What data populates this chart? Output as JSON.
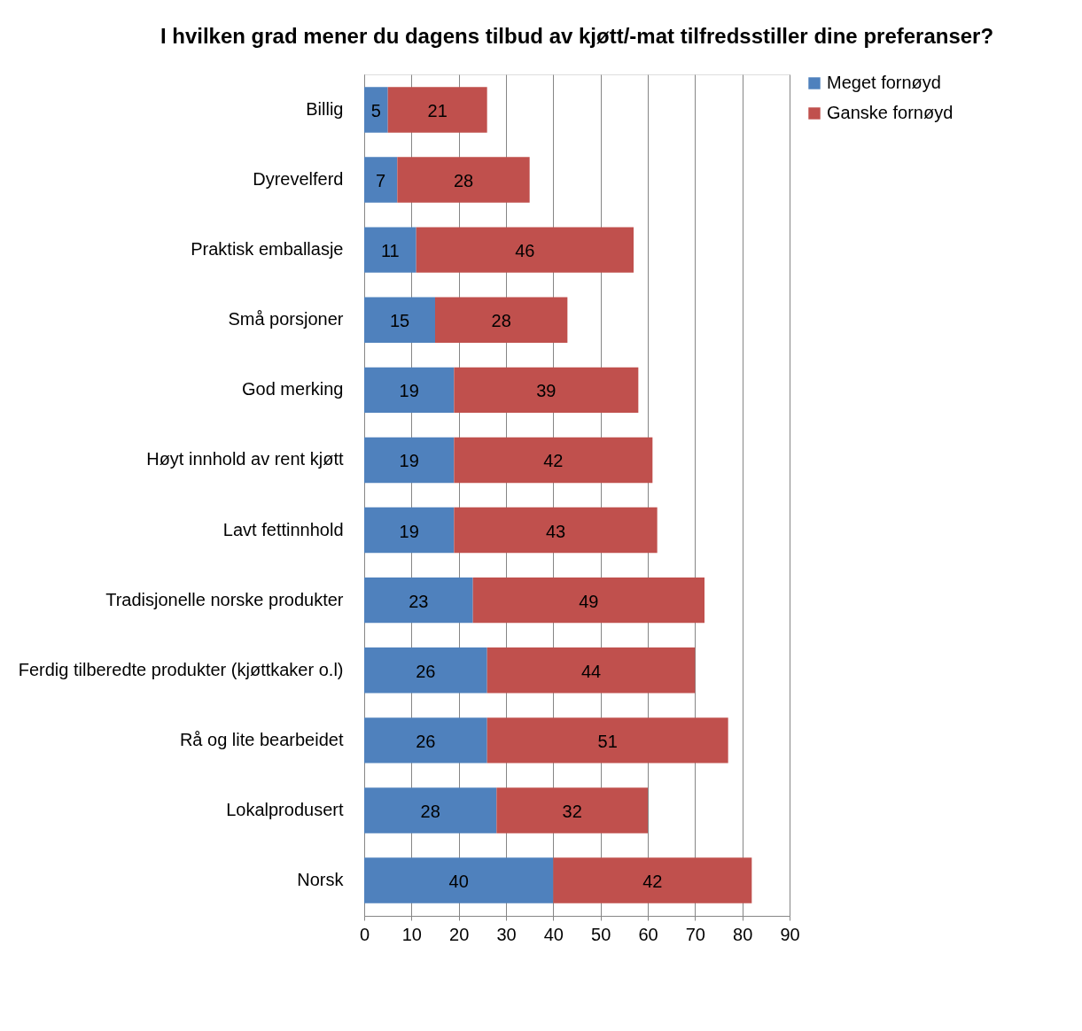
{
  "chart_data": {
    "type": "bar",
    "orientation": "horizontal",
    "stacked": true,
    "title": "I hvilken grad mener du dagens tilbud av kjøtt/-mat tilfredsstiller dine preferanser?",
    "categories": [
      "Billig",
      "Dyrevelferd",
      "Praktisk emballasje",
      "Små porsjoner",
      "God merking",
      "Høyt innhold av rent kjøtt",
      "Lavt fettinnhold",
      "Tradisjonelle norske produkter",
      "Ferdig tilberedte produkter (kjøttkaker o.l)",
      "Rå og lite bearbeidet",
      "Lokalprodusert",
      "Norsk"
    ],
    "series": [
      {
        "name": "Meget fornøyd",
        "color": "#4f81bd",
        "values": [
          5,
          7,
          11,
          15,
          19,
          19,
          19,
          23,
          26,
          26,
          28,
          40
        ]
      },
      {
        "name": "Ganske fornøyd",
        "color": "#c0504d",
        "values": [
          21,
          28,
          46,
          28,
          39,
          42,
          43,
          49,
          44,
          51,
          32,
          42
        ]
      }
    ],
    "xlim": [
      0,
      90
    ],
    "xticks": [
      0,
      10,
      20,
      30,
      40,
      50,
      60,
      70,
      80,
      90
    ],
    "grid": "x",
    "legend": "right",
    "data_labels": true
  }
}
